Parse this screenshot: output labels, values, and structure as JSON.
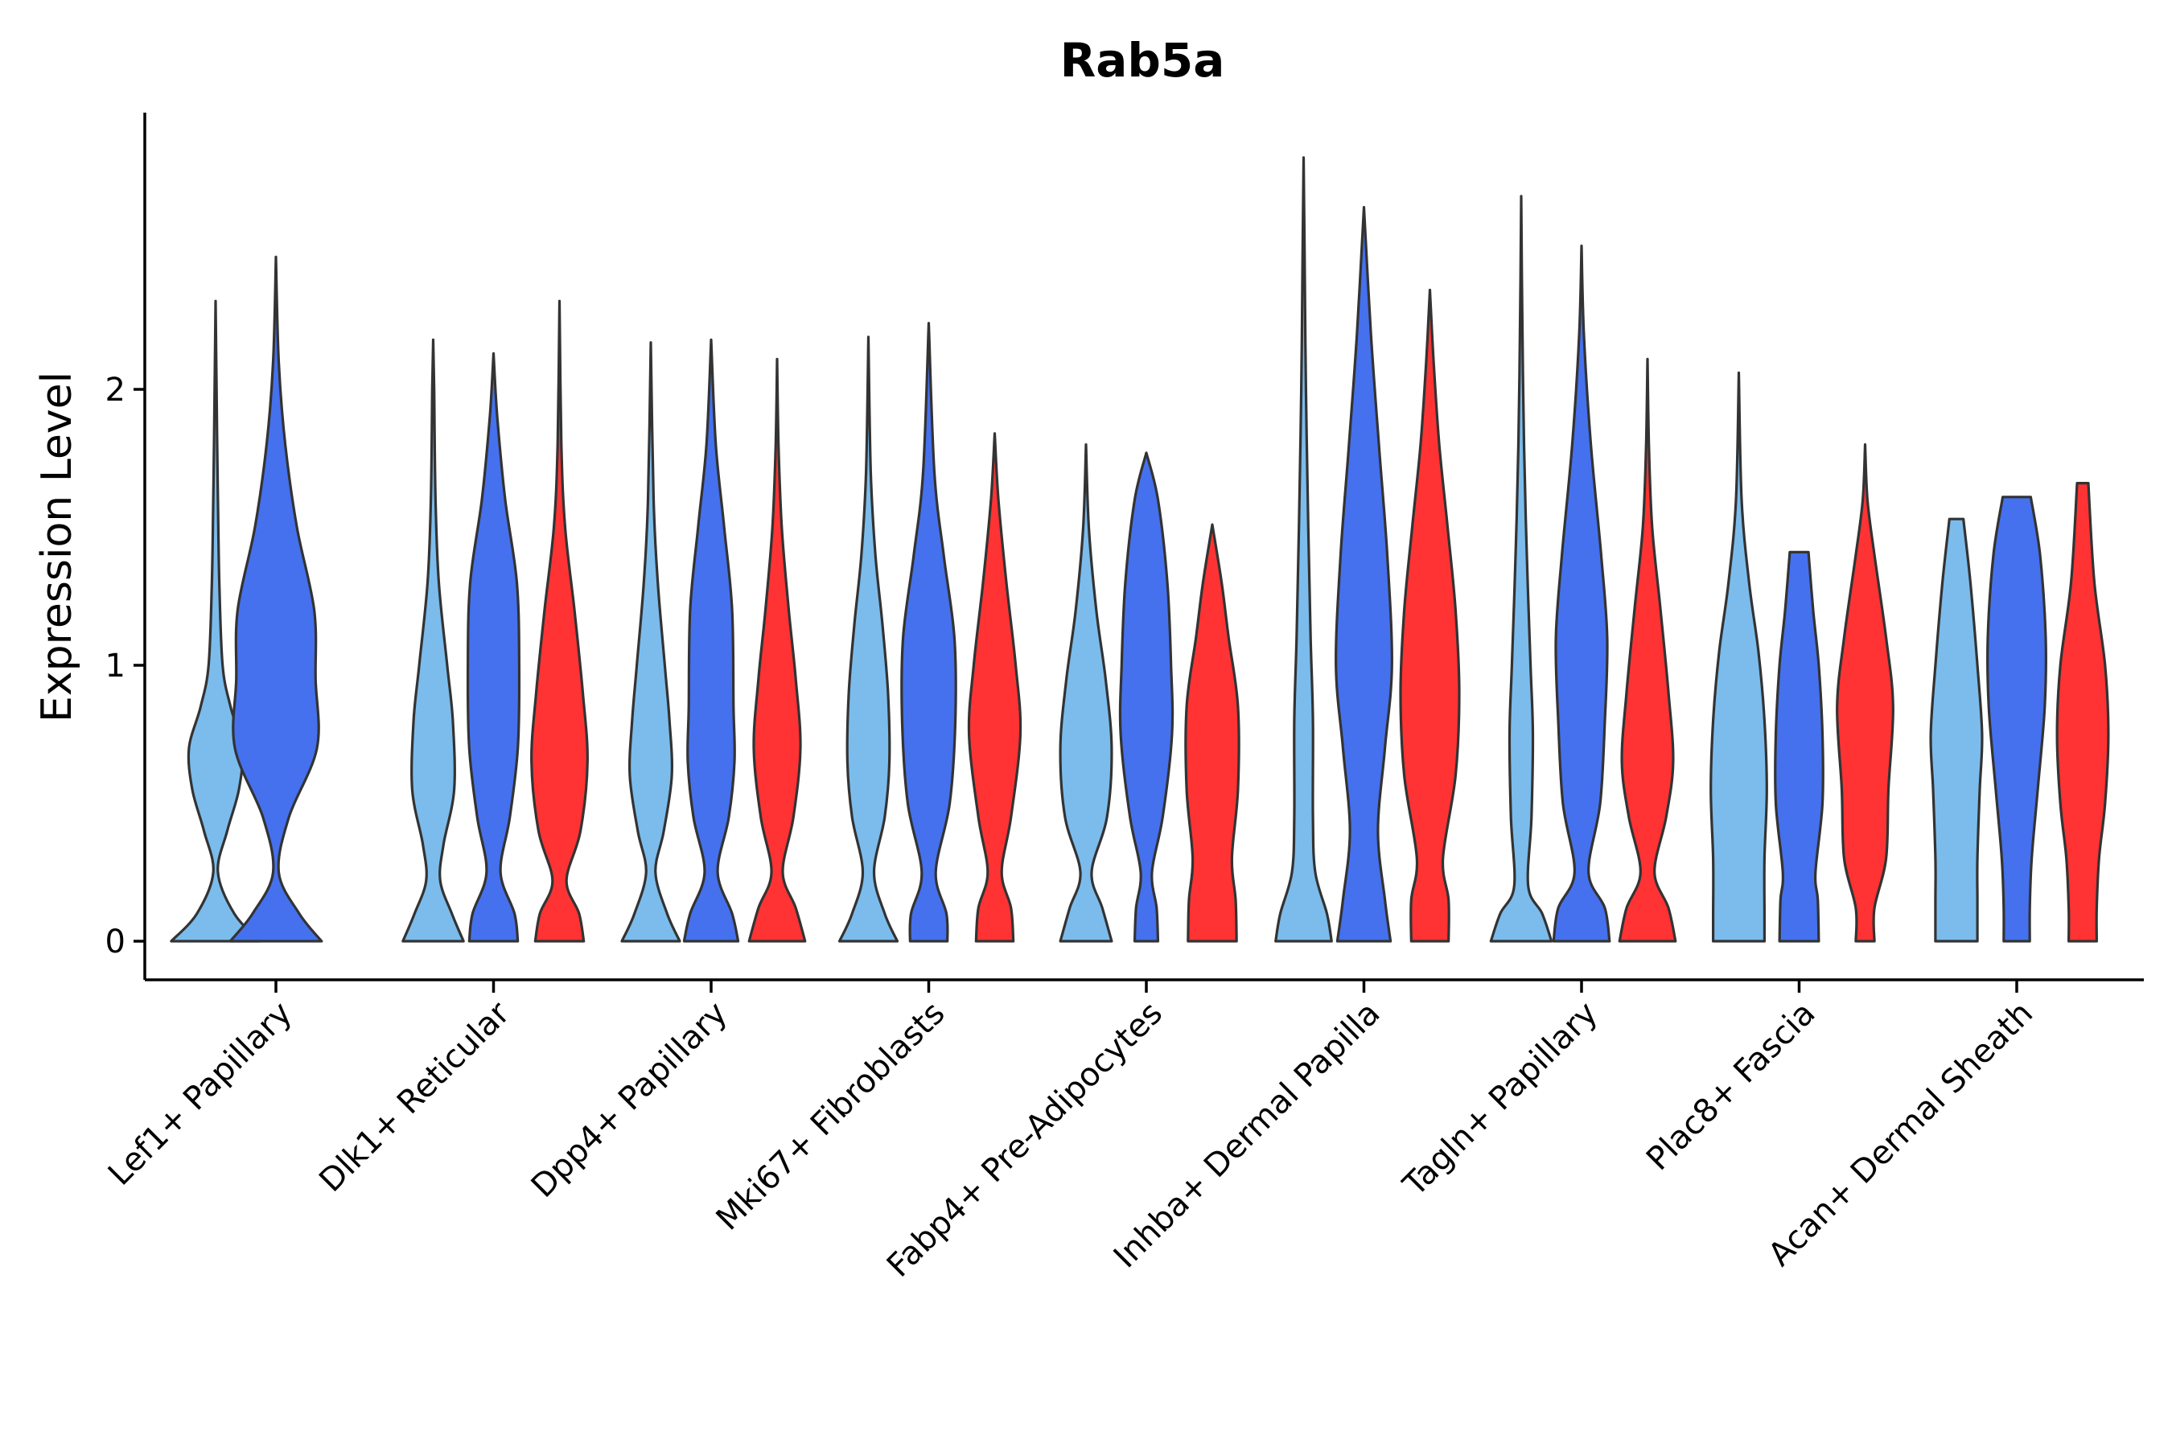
{
  "chart_data": {
    "type": "violin",
    "title": "Rab5a",
    "xlabel": "",
    "ylabel": "Expression Level",
    "ylim": [
      -0.15,
      3.0
    ],
    "yticks": [
      0,
      1,
      2
    ],
    "legend": "none",
    "categories": [
      "Lef1+ Papillary",
      "Dlk1+ Reticular",
      "Dpp4+ Papillary",
      "Mki67+ Fibroblasts",
      "Fabp4+ Pre-Adipocytes",
      "Inhba+ Dermal Papilla",
      "Tagln+ Papillary",
      "Plac8+ Fascia",
      "Acan+ Dermal Sheath"
    ],
    "group_colors": [
      "#7bbcec",
      "#4571ee",
      "#ff3333"
    ],
    "violins": [
      {
        "category": 0,
        "group": 0,
        "max": 2.32,
        "profile": [
          [
            0,
            0.95
          ],
          [
            0.1,
            0.4
          ],
          [
            0.25,
            0.05
          ],
          [
            0.4,
            0.25
          ],
          [
            0.55,
            0.5
          ],
          [
            0.7,
            0.57
          ],
          [
            0.85,
            0.32
          ],
          [
            1.0,
            0.15
          ],
          [
            1.3,
            0.08
          ],
          [
            1.6,
            0.05
          ],
          [
            2.0,
            0.02
          ],
          [
            2.32,
            0
          ]
        ]
      },
      {
        "category": 0,
        "group": 1,
        "max": 2.48,
        "profile": [
          [
            0,
            0.98
          ],
          [
            0.1,
            0.5
          ],
          [
            0.25,
            0.06
          ],
          [
            0.45,
            0.28
          ],
          [
            0.7,
            0.88
          ],
          [
            0.95,
            0.85
          ],
          [
            1.2,
            0.82
          ],
          [
            1.5,
            0.45
          ],
          [
            1.8,
            0.2
          ],
          [
            2.1,
            0.06
          ],
          [
            2.48,
            0
          ]
        ]
      },
      {
        "category": 1,
        "group": 0,
        "max": 2.18,
        "profile": [
          [
            0,
            0.65
          ],
          [
            0.1,
            0.4
          ],
          [
            0.22,
            0.15
          ],
          [
            0.35,
            0.22
          ],
          [
            0.55,
            0.45
          ],
          [
            0.8,
            0.42
          ],
          [
            1.0,
            0.3
          ],
          [
            1.3,
            0.12
          ],
          [
            1.6,
            0.05
          ],
          [
            2.0,
            0.02
          ],
          [
            2.18,
            0
          ]
        ]
      },
      {
        "category": 1,
        "group": 1,
        "max": 2.13,
        "profile": [
          [
            0,
            0.52
          ],
          [
            0.1,
            0.45
          ],
          [
            0.25,
            0.15
          ],
          [
            0.45,
            0.35
          ],
          [
            0.7,
            0.52
          ],
          [
            1.0,
            0.55
          ],
          [
            1.3,
            0.5
          ],
          [
            1.6,
            0.25
          ],
          [
            1.9,
            0.08
          ],
          [
            2.13,
            0
          ]
        ]
      },
      {
        "category": 1,
        "group": 2,
        "max": 2.32,
        "profile": [
          [
            0,
            0.52
          ],
          [
            0.1,
            0.42
          ],
          [
            0.22,
            0.15
          ],
          [
            0.4,
            0.45
          ],
          [
            0.65,
            0.6
          ],
          [
            0.9,
            0.5
          ],
          [
            1.2,
            0.32
          ],
          [
            1.5,
            0.12
          ],
          [
            1.8,
            0.04
          ],
          [
            2.32,
            0
          ]
        ]
      },
      {
        "category": 2,
        "group": 0,
        "max": 2.17,
        "profile": [
          [
            0,
            0.62
          ],
          [
            0.1,
            0.35
          ],
          [
            0.25,
            0.1
          ],
          [
            0.4,
            0.28
          ],
          [
            0.6,
            0.45
          ],
          [
            0.8,
            0.4
          ],
          [
            1.0,
            0.3
          ],
          [
            1.3,
            0.15
          ],
          [
            1.6,
            0.06
          ],
          [
            2.17,
            0
          ]
        ]
      },
      {
        "category": 2,
        "group": 1,
        "max": 2.18,
        "profile": [
          [
            0,
            0.58
          ],
          [
            0.1,
            0.45
          ],
          [
            0.25,
            0.14
          ],
          [
            0.45,
            0.38
          ],
          [
            0.65,
            0.5
          ],
          [
            0.85,
            0.48
          ],
          [
            1.2,
            0.45
          ],
          [
            1.5,
            0.28
          ],
          [
            1.8,
            0.1
          ],
          [
            2.18,
            0
          ]
        ]
      },
      {
        "category": 2,
        "group": 2,
        "max": 2.11,
        "profile": [
          [
            0,
            0.6
          ],
          [
            0.12,
            0.4
          ],
          [
            0.25,
            0.12
          ],
          [
            0.45,
            0.35
          ],
          [
            0.7,
            0.5
          ],
          [
            0.95,
            0.4
          ],
          [
            1.2,
            0.25
          ],
          [
            1.5,
            0.1
          ],
          [
            1.8,
            0.03
          ],
          [
            2.11,
            0
          ]
        ]
      },
      {
        "category": 3,
        "group": 0,
        "max": 2.19,
        "profile": [
          [
            0,
            0.62
          ],
          [
            0.1,
            0.35
          ],
          [
            0.25,
            0.12
          ],
          [
            0.45,
            0.35
          ],
          [
            0.65,
            0.45
          ],
          [
            0.9,
            0.42
          ],
          [
            1.15,
            0.3
          ],
          [
            1.4,
            0.15
          ],
          [
            1.7,
            0.05
          ],
          [
            2.19,
            0
          ]
        ]
      },
      {
        "category": 3,
        "group": 1,
        "max": 2.24,
        "profile": [
          [
            0,
            0.4
          ],
          [
            0.1,
            0.38
          ],
          [
            0.25,
            0.15
          ],
          [
            0.5,
            0.45
          ],
          [
            0.8,
            0.57
          ],
          [
            1.1,
            0.55
          ],
          [
            1.4,
            0.32
          ],
          [
            1.7,
            0.12
          ],
          [
            2.24,
            0
          ]
        ]
      },
      {
        "category": 3,
        "group": 2,
        "max": 1.84,
        "profile": [
          [
            0,
            0.4
          ],
          [
            0.12,
            0.35
          ],
          [
            0.25,
            0.15
          ],
          [
            0.45,
            0.35
          ],
          [
            0.75,
            0.55
          ],
          [
            1.0,
            0.45
          ],
          [
            1.3,
            0.25
          ],
          [
            1.6,
            0.08
          ],
          [
            1.84,
            0
          ]
        ]
      },
      {
        "category": 4,
        "group": 0,
        "max": 1.8,
        "profile": [
          [
            0,
            0.55
          ],
          [
            0.12,
            0.35
          ],
          [
            0.25,
            0.12
          ],
          [
            0.45,
            0.45
          ],
          [
            0.7,
            0.55
          ],
          [
            0.95,
            0.42
          ],
          [
            1.2,
            0.22
          ],
          [
            1.5,
            0.06
          ],
          [
            1.8,
            0
          ]
        ]
      },
      {
        "category": 4,
        "group": 1,
        "max": 1.77,
        "profile": [
          [
            0,
            0.25
          ],
          [
            0.12,
            0.22
          ],
          [
            0.25,
            0.12
          ],
          [
            0.45,
            0.35
          ],
          [
            0.75,
            0.55
          ],
          [
            1.0,
            0.53
          ],
          [
            1.3,
            0.45
          ],
          [
            1.6,
            0.25
          ],
          [
            1.77,
            0
          ]
        ]
      },
      {
        "category": 4,
        "group": 2,
        "max": 1.51,
        "profile": [
          [
            0,
            0.52
          ],
          [
            0.15,
            0.5
          ],
          [
            0.3,
            0.42
          ],
          [
            0.55,
            0.55
          ],
          [
            0.85,
            0.55
          ],
          [
            1.1,
            0.35
          ],
          [
            1.3,
            0.2
          ],
          [
            1.51,
            0
          ]
        ]
      },
      {
        "category": 5,
        "group": 0,
        "max": 2.84,
        "profile": [
          [
            0,
            0.6
          ],
          [
            0.1,
            0.5
          ],
          [
            0.25,
            0.25
          ],
          [
            0.45,
            0.2
          ],
          [
            0.8,
            0.2
          ],
          [
            1.1,
            0.15
          ],
          [
            1.5,
            0.1
          ],
          [
            2.0,
            0.05
          ],
          [
            2.5,
            0.02
          ],
          [
            2.84,
            0
          ]
        ]
      },
      {
        "category": 5,
        "group": 1,
        "max": 2.66,
        "profile": [
          [
            0,
            0.57
          ],
          [
            0.15,
            0.45
          ],
          [
            0.4,
            0.3
          ],
          [
            0.7,
            0.45
          ],
          [
            1.0,
            0.6
          ],
          [
            1.4,
            0.5
          ],
          [
            1.8,
            0.32
          ],
          [
            2.2,
            0.15
          ],
          [
            2.66,
            0
          ]
        ]
      },
      {
        "category": 5,
        "group": 2,
        "max": 2.36,
        "profile": [
          [
            0,
            0.4
          ],
          [
            0.15,
            0.4
          ],
          [
            0.3,
            0.28
          ],
          [
            0.6,
            0.55
          ],
          [
            0.9,
            0.63
          ],
          [
            1.2,
            0.55
          ],
          [
            1.5,
            0.38
          ],
          [
            1.8,
            0.2
          ],
          [
            2.1,
            0.08
          ],
          [
            2.36,
            0
          ]
        ]
      },
      {
        "category": 6,
        "group": 0,
        "max": 2.7,
        "profile": [
          [
            0,
            0.65
          ],
          [
            0.1,
            0.45
          ],
          [
            0.2,
            0.15
          ],
          [
            0.45,
            0.22
          ],
          [
            0.75,
            0.25
          ],
          [
            1.0,
            0.2
          ],
          [
            1.4,
            0.12
          ],
          [
            1.8,
            0.06
          ],
          [
            2.3,
            0.02
          ],
          [
            2.7,
            0
          ]
        ]
      },
      {
        "category": 6,
        "group": 1,
        "max": 2.52,
        "profile": [
          [
            0,
            0.6
          ],
          [
            0.12,
            0.5
          ],
          [
            0.25,
            0.15
          ],
          [
            0.5,
            0.4
          ],
          [
            0.8,
            0.5
          ],
          [
            1.1,
            0.55
          ],
          [
            1.4,
            0.42
          ],
          [
            1.8,
            0.2
          ],
          [
            2.2,
            0.05
          ],
          [
            2.52,
            0
          ]
        ]
      },
      {
        "category": 6,
        "group": 2,
        "max": 2.11,
        "profile": [
          [
            0,
            0.6
          ],
          [
            0.12,
            0.45
          ],
          [
            0.25,
            0.15
          ],
          [
            0.45,
            0.4
          ],
          [
            0.65,
            0.55
          ],
          [
            0.9,
            0.45
          ],
          [
            1.2,
            0.28
          ],
          [
            1.5,
            0.1
          ],
          [
            1.8,
            0.03
          ],
          [
            2.11,
            0
          ]
        ]
      },
      {
        "category": 7,
        "group": 0,
        "max": 2.06,
        "profile": [
          [
            0,
            0.55
          ],
          [
            0.1,
            0.55
          ],
          [
            0.3,
            0.55
          ],
          [
            0.55,
            0.6
          ],
          [
            0.8,
            0.55
          ],
          [
            1.05,
            0.42
          ],
          [
            1.3,
            0.22
          ],
          [
            1.6,
            0.06
          ],
          [
            2.06,
            0
          ]
        ]
      },
      {
        "category": 7,
        "group": 1,
        "max": 1.41,
        "profile": [
          [
            0,
            0.42
          ],
          [
            0.15,
            0.4
          ],
          [
            0.25,
            0.35
          ],
          [
            0.5,
            0.5
          ],
          [
            0.75,
            0.5
          ],
          [
            1.0,
            0.42
          ],
          [
            1.2,
            0.3
          ],
          [
            1.41,
            0.2
          ]
        ]
      },
      {
        "category": 7,
        "group": 2,
        "max": 1.8,
        "profile": [
          [
            0,
            0.2
          ],
          [
            0.12,
            0.2
          ],
          [
            0.3,
            0.45
          ],
          [
            0.55,
            0.5
          ],
          [
            0.85,
            0.6
          ],
          [
            1.1,
            0.45
          ],
          [
            1.4,
            0.2
          ],
          [
            1.6,
            0.05
          ],
          [
            1.8,
            0
          ]
        ]
      },
      {
        "category": 8,
        "group": 0,
        "max": 1.53,
        "profile": [
          [
            0,
            0.45
          ],
          [
            0.15,
            0.45
          ],
          [
            0.3,
            0.45
          ],
          [
            0.55,
            0.5
          ],
          [
            0.75,
            0.55
          ],
          [
            1.0,
            0.45
          ],
          [
            1.3,
            0.3
          ],
          [
            1.53,
            0.15
          ]
        ]
      },
      {
        "category": 8,
        "group": 1,
        "max": 1.61,
        "profile": [
          [
            0,
            0.28
          ],
          [
            0.12,
            0.28
          ],
          [
            0.3,
            0.32
          ],
          [
            0.55,
            0.45
          ],
          [
            0.85,
            0.6
          ],
          [
            1.1,
            0.62
          ],
          [
            1.4,
            0.5
          ],
          [
            1.61,
            0.3
          ]
        ]
      },
      {
        "category": 8,
        "group": 2,
        "max": 1.66,
        "profile": [
          [
            0,
            0.3
          ],
          [
            0.12,
            0.3
          ],
          [
            0.3,
            0.35
          ],
          [
            0.5,
            0.48
          ],
          [
            0.75,
            0.55
          ],
          [
            1.0,
            0.48
          ],
          [
            1.3,
            0.25
          ],
          [
            1.66,
            0.12
          ]
        ]
      }
    ]
  }
}
